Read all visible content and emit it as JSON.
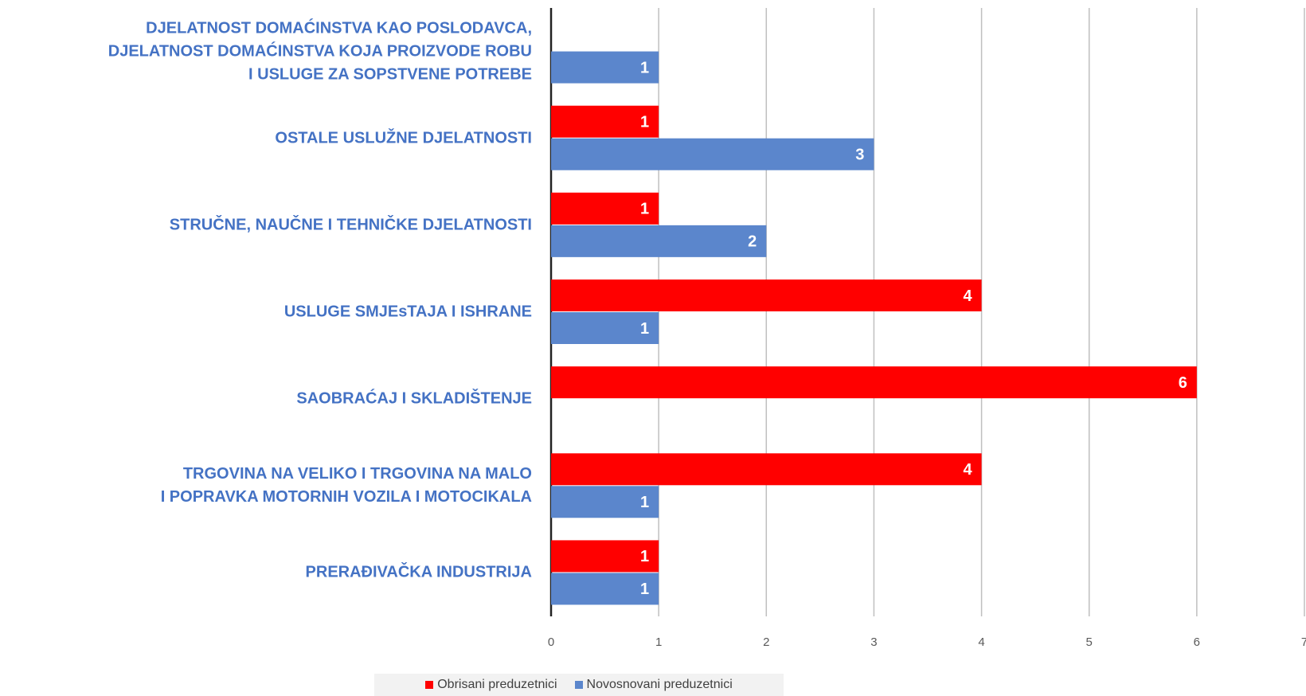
{
  "chart_data": {
    "type": "barh",
    "categories": [
      "DJELATNOST DOMAĆINSTVA KAO POSLODAVCA,\nDJELATNOST DOMAĆINSTVA KOJA PROIZVODE ROBU\nI USLUGE ZA SOPSTVENE POTREBE",
      "OSTALE USLUŽNE DJELATNOSTI",
      "STRUČNE, NAUČNE I TEHNIČKE DJELATNOSTI",
      "USLUGE SMJEsTAJA I ISHRANE",
      "SAOBRAĆAJ I SKLADIŠTENJE",
      "TRGOVINA NA VELIKO I TRGOVINA NA MALO\nI POPRAVKA MOTORNIH VOZILA I MOTOCIKALA",
      "PRERAĐIVAČKA INDUSTRIJA"
    ],
    "series": [
      {
        "name": "Obrisani preduzetnici",
        "color": "#ff0000",
        "values": [
          null,
          1,
          1,
          4,
          6,
          4,
          1
        ]
      },
      {
        "name": "Novosnovani preduzetnici",
        "color": "#5b86cc",
        "values": [
          1,
          3,
          2,
          1,
          null,
          1,
          1
        ]
      }
    ],
    "xlim": [
      0,
      7
    ],
    "xticks": [
      0,
      1,
      2,
      3,
      4,
      5,
      6,
      7
    ],
    "grid": true,
    "legend": "bottom"
  }
}
